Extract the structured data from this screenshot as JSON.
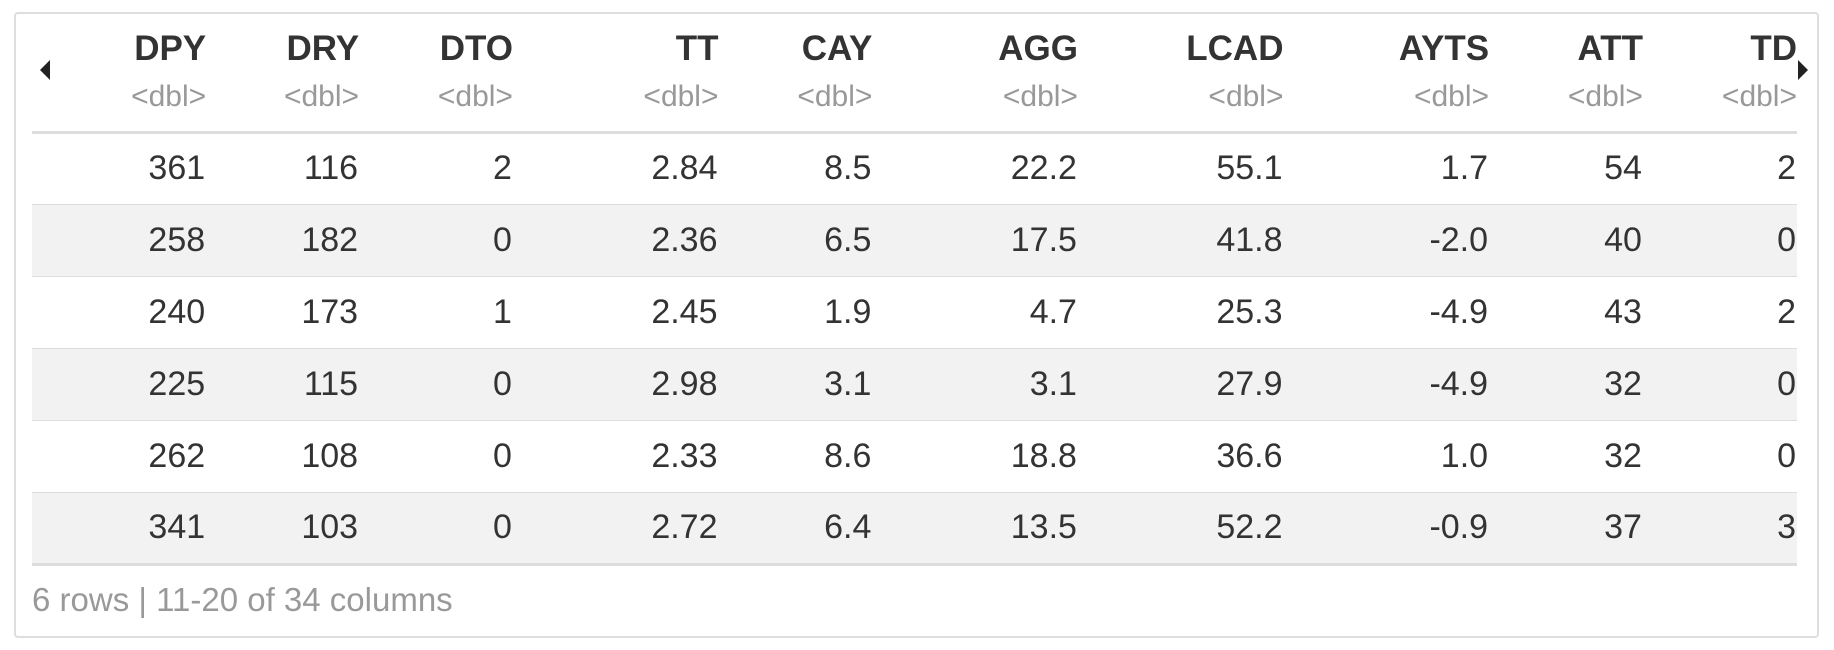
{
  "table": {
    "columns": [
      {
        "name": "DPY",
        "type": "<dbl>"
      },
      {
        "name": "DRY",
        "type": "<dbl>"
      },
      {
        "name": "DTO",
        "type": "<dbl>"
      },
      {
        "name": "TT",
        "type": "<dbl>"
      },
      {
        "name": "CAY",
        "type": "<dbl>"
      },
      {
        "name": "AGG",
        "type": "<dbl>"
      },
      {
        "name": "LCAD",
        "type": "<dbl>"
      },
      {
        "name": "AYTS",
        "type": "<dbl>"
      },
      {
        "name": "ATT",
        "type": "<dbl>"
      },
      {
        "name": "TD",
        "type": "<dbl>"
      }
    ],
    "rows": [
      [
        "361",
        "116",
        "2",
        "2.84",
        "8.5",
        "22.2",
        "55.1",
        "1.7",
        "54",
        "2"
      ],
      [
        "258",
        "182",
        "0",
        "2.36",
        "6.5",
        "17.5",
        "41.8",
        "-2.0",
        "40",
        "0"
      ],
      [
        "240",
        "173",
        "1",
        "2.45",
        "1.9",
        "4.7",
        "25.3",
        "-4.9",
        "43",
        "2"
      ],
      [
        "225",
        "115",
        "0",
        "2.98",
        "3.1",
        "3.1",
        "27.9",
        "-4.9",
        "32",
        "0"
      ],
      [
        "262",
        "108",
        "0",
        "2.33",
        "8.6",
        "18.8",
        "36.6",
        "1.0",
        "32",
        "0"
      ],
      [
        "341",
        "103",
        "0",
        "2.72",
        "6.4",
        "13.5",
        "52.2",
        "-0.9",
        "37",
        "3"
      ]
    ]
  },
  "footer": {
    "summary": "6 rows | 11-20 of 34 columns"
  },
  "nav": {
    "prev_icon": "caret-left-icon",
    "next_icon": "caret-right-icon"
  }
}
